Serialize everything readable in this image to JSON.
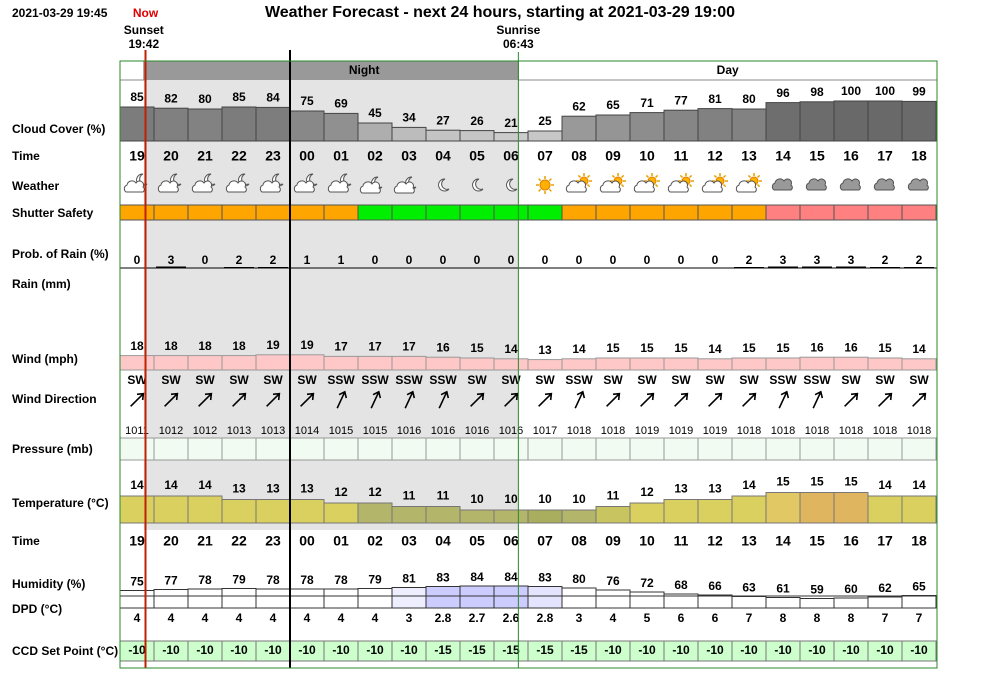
{
  "header": {
    "timestamp": "2021-03-29 19:45",
    "now": "Now",
    "title": "Weather Forecast - next 24 hours, starting at 2021-03-29 19:00",
    "sunset": {
      "label": "Sunset",
      "time": "19:42"
    },
    "sunrise": {
      "label": "Sunrise",
      "time": "06:43"
    },
    "night": "Night",
    "day": "Day"
  },
  "hours": [
    "19",
    "20",
    "21",
    "22",
    "23",
    "00",
    "01",
    "02",
    "03",
    "04",
    "05",
    "06",
    "07",
    "08",
    "09",
    "10",
    "11",
    "12",
    "13",
    "14",
    "15",
    "16",
    "17",
    "18"
  ],
  "rows": {
    "cloud_cover": {
      "label": "Cloud Cover (%)",
      "values": [
        85,
        82,
        80,
        85,
        84,
        75,
        69,
        45,
        34,
        27,
        26,
        21,
        25,
        62,
        65,
        71,
        77,
        81,
        80,
        96,
        98,
        100,
        100,
        99
      ]
    },
    "time": {
      "label": "Time"
    },
    "weather": {
      "label": "Weather"
    },
    "shutter_safety": {
      "label": "Shutter Safety",
      "colors": [
        "#ffa500",
        "#ffa500",
        "#ffa500",
        "#ffa500",
        "#ffa500",
        "#ffa500",
        "#ffa500",
        "#00ee00",
        "#00ee00",
        "#00ee00",
        "#00ee00",
        "#00ee00",
        "#00ee00",
        "#ffa500",
        "#ffa500",
        "#ffa500",
        "#ffa500",
        "#ffa500",
        "#ffa500",
        "#ff8080",
        "#ff8080",
        "#ff8080",
        "#ff8080",
        "#ff8080"
      ]
    },
    "rain_probability": {
      "label": "Prob. of Rain (%)",
      "values": [
        0,
        3,
        0,
        2,
        2,
        1,
        1,
        0,
        0,
        0,
        0,
        0,
        0,
        0,
        0,
        0,
        0,
        0,
        2,
        3,
        3,
        3,
        2,
        2
      ]
    },
    "rain": {
      "label": "Rain (mm)"
    },
    "wind": {
      "label": "Wind (mph)",
      "color": "#ffc8c8",
      "values": [
        18,
        18,
        18,
        18,
        19,
        19,
        17,
        17,
        17,
        16,
        15,
        14,
        13,
        14,
        15,
        15,
        15,
        14,
        15,
        15,
        16,
        16,
        15,
        14
      ]
    },
    "wind_direction": {
      "label": "Wind Direction",
      "values": [
        "SW",
        "SW",
        "SW",
        "SW",
        "SW",
        "SW",
        "SSW",
        "SSW",
        "SSW",
        "SSW",
        "SW",
        "SW",
        "SW",
        "SSW",
        "SW",
        "SW",
        "SW",
        "SW",
        "SW",
        "SSW",
        "SSW",
        "SW",
        "SW",
        "SW"
      ]
    },
    "pressure": {
      "label": "Pressure (mb)",
      "color": "#f2fbf2",
      "values": [
        1011,
        1012,
        1012,
        1013,
        1013,
        1014,
        1015,
        1015,
        1016,
        1016,
        1016,
        1016,
        1017,
        1018,
        1018,
        1019,
        1019,
        1019,
        1018,
        1018,
        1018,
        1018,
        1018,
        1018
      ]
    },
    "temperature": {
      "label": "Temperature (°C)",
      "values": [
        14,
        14,
        14,
        13,
        13,
        13,
        12,
        12,
        11,
        11,
        10,
        10,
        10,
        10,
        11,
        12,
        13,
        13,
        14,
        15,
        15,
        15,
        14,
        14
      ],
      "colors": [
        "#d9d060",
        "#d9d060",
        "#d9d060",
        "#d9d060",
        "#d9d060",
        "#d9d060",
        "#d9d060",
        "#b3b56a",
        "#b3b56a",
        "#b3b56a",
        "#b3b56a",
        "#b3b56a",
        "#a9ae5e",
        "#b3b56a",
        "#c8c460",
        "#d9d060",
        "#d9d060",
        "#d9d060",
        "#d9d060",
        "#e2c865",
        "#dfb55f",
        "#dfb55f",
        "#d9d060",
        "#d9d060"
      ]
    },
    "humidity": {
      "label": "Humidity (%)",
      "values": [
        75,
        77,
        78,
        79,
        78,
        78,
        78,
        79,
        81,
        83,
        84,
        84,
        83,
        80,
        76,
        72,
        68,
        66,
        63,
        61,
        59,
        60,
        62,
        65
      ],
      "colors": [
        "#ffffff",
        "#ffffff",
        "#ffffff",
        "#ffffff",
        "#ffffff",
        "#ffffff",
        "#ffffff",
        "#ffffff",
        "#eeeeff",
        "#ccccff",
        "#ccccff",
        "#ccccff",
        "#e4e4ff",
        "#ffffff",
        "#ffffff",
        "#ffffff",
        "#ffffff",
        "#ffffff",
        "#ffffff",
        "#ffffff",
        "#ffffff",
        "#ffffff",
        "#ffffff",
        "#ffffff"
      ]
    },
    "dpd": {
      "label": "DPD (°C)",
      "values": [
        4,
        4,
        4,
        4,
        4,
        4,
        4,
        4,
        3,
        2.8,
        2.7,
        2.6,
        2.8,
        3,
        4,
        5,
        6,
        6,
        7,
        8,
        8,
        8,
        7,
        7
      ]
    },
    "ccd_set_point": {
      "label": "CCD Set Point (°C)",
      "color": "#ccffcc",
      "values": [
        -10,
        -10,
        -10,
        -10,
        -10,
        -10,
        -10,
        -10,
        -10,
        -15,
        -15,
        -15,
        -15,
        -15,
        -10,
        -10,
        -10,
        -10,
        -10,
        -10,
        -10,
        -10,
        -10,
        -10
      ]
    }
  }
}
